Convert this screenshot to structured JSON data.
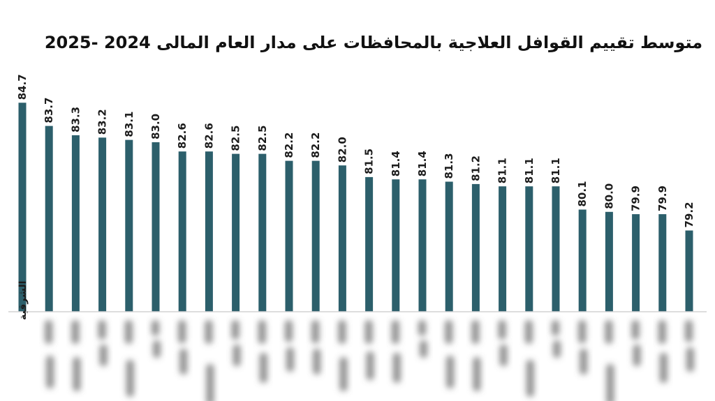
{
  "chart_data": {
    "type": "bar",
    "title": "متوسط تقييم القوافل العلاجية بالمحافظات على مدار العام المالى 2024 -2025",
    "categories": [
      "الشرقية",
      "",
      "",
      "",
      "",
      "",
      "",
      "",
      "",
      "",
      "",
      "",
      "",
      "",
      "",
      "",
      "",
      "",
      "",
      "",
      "",
      "",
      "",
      "",
      "",
      ""
    ],
    "values": [
      84.7,
      83.7,
      83.3,
      83.2,
      83.1,
      83.0,
      82.6,
      82.6,
      82.5,
      82.5,
      82.2,
      82.2,
      82.0,
      81.5,
      81.4,
      81.4,
      81.3,
      81.2,
      81.1,
      81.1,
      81.1,
      80.1,
      80.0,
      79.9,
      79.9,
      79.2
    ],
    "value_labels": [
      "84.7",
      "83.7",
      "83.3",
      "83.2",
      "83.1",
      "83.0",
      "82.6",
      "82.6",
      "82.5",
      "82.5",
      "82.2",
      "82.2",
      "82.0",
      "81.5",
      "81.4",
      "81.4",
      "81.3",
      "81.2",
      "81.1",
      "81.1",
      "81.1",
      "80.1",
      "80.0",
      "79.9",
      "79.9",
      "79.2"
    ],
    "xlabel": "",
    "ylabel": "",
    "ylim": [
      75.7,
      85.0
    ],
    "grid": false,
    "legend": "none",
    "bar_color": "#2c5f6b",
    "axis_color": "#d4d4d4",
    "blurred_category_labels": true
  }
}
